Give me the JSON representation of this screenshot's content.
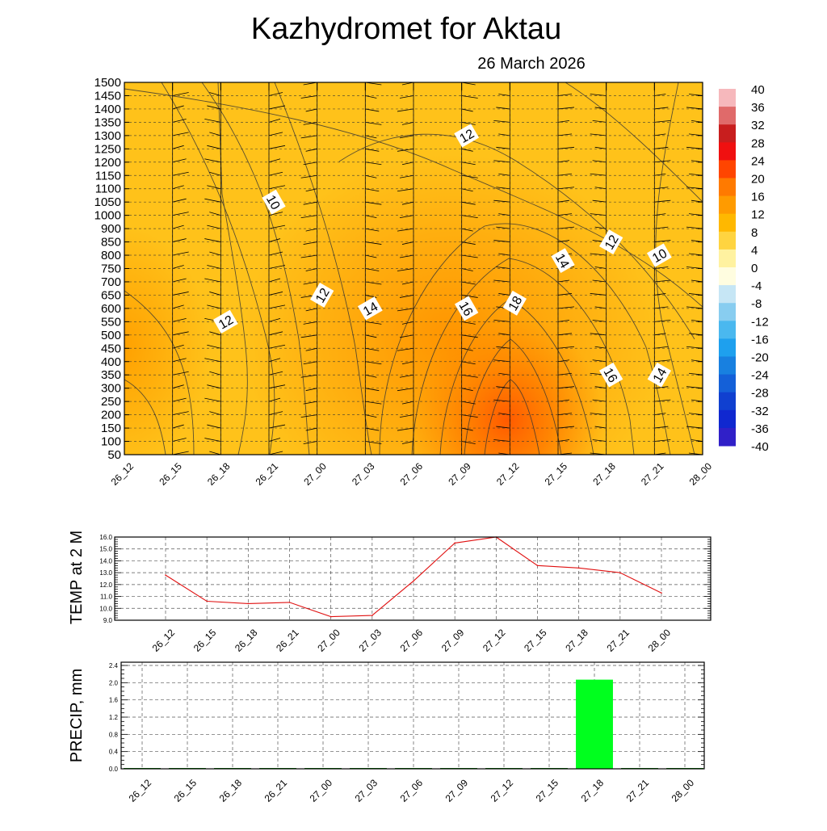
{
  "title": "Kazhydromet  for Aktau",
  "subtitle": "26 March 2026",
  "time_labels": [
    "26_12",
    "26_15",
    "26_18",
    "26_21",
    "27_00",
    "27_03",
    "27_06",
    "27_09",
    "27_12",
    "27_15",
    "27_18",
    "27_21",
    "28_00"
  ],
  "chart_data": [
    {
      "type": "heatmap",
      "description_source": "time-height cross-section (filled temperature, contours, wind barbs)",
      "x": [
        "26_12",
        "26_15",
        "26_18",
        "26_21",
        "27_00",
        "27_03",
        "27_06",
        "27_09",
        "27_12",
        "27_15",
        "27_18",
        "27_21",
        "28_00"
      ],
      "y_levels": [
        1500,
        1450,
        1400,
        1350,
        1300,
        1250,
        1200,
        1150,
        1100,
        1050,
        1000,
        900,
        850,
        800,
        750,
        700,
        650,
        600,
        550,
        500,
        450,
        400,
        350,
        300,
        250,
        200,
        150,
        100,
        50
      ],
      "colorbar": {
        "labels": [
          "40",
          "36",
          "32",
          "28",
          "24",
          "20",
          "16",
          "12",
          "8",
          "4",
          "0",
          "-4",
          "-8",
          "-12",
          "-16",
          "-20",
          "-24",
          "-28",
          "-32",
          "-36",
          "-40"
        ],
        "colors": [
          "#f6b8bc",
          "#e06a6a",
          "#c81e1e",
          "#f01010",
          "#ff4500",
          "#ff7a00",
          "#ff9b00",
          "#ffb800",
          "#ffd440",
          "#fff2a0",
          "#fffde0",
          "#c6e6f5",
          "#88cdf0",
          "#4ab8ef",
          "#1ea0ee",
          "#1880e0",
          "#1460d8",
          "#1040d0",
          "#1028d0",
          "#3020c8",
          "#8040d0"
        ]
      },
      "contour_labels": [
        {
          "text": "12",
          "time": "27_09",
          "level": 1300
        },
        {
          "text": "10",
          "time": "26_21",
          "level": 1050
        },
        {
          "text": "12",
          "time": "27_18",
          "level": 850
        },
        {
          "text": "10",
          "time": "27_21",
          "level": 800
        },
        {
          "text": "14",
          "time": "27_15",
          "level": 780
        },
        {
          "text": "12",
          "time": "27_00",
          "level": 650
        },
        {
          "text": "14",
          "time": "27_03",
          "level": 600
        },
        {
          "text": "16",
          "time": "27_09",
          "level": 600
        },
        {
          "text": "18",
          "time": "27_12",
          "level": 620
        },
        {
          "text": "12",
          "time": "26_18",
          "level": 550
        },
        {
          "text": "16",
          "time": "27_18",
          "level": 350
        },
        {
          "text": "14",
          "time": "27_21",
          "level": 350
        }
      ],
      "xlabel": "",
      "ylabel": ""
    },
    {
      "type": "line",
      "ylabel": "TEMP at 2 M",
      "x": [
        "26_12",
        "26_15",
        "26_18",
        "26_21",
        "27_00",
        "27_03",
        "27_06",
        "27_09",
        "27_12",
        "27_15",
        "27_18",
        "27_21",
        "28_00"
      ],
      "values": [
        12.8,
        10.6,
        10.4,
        10.5,
        9.3,
        9.4,
        12.3,
        15.5,
        16.0,
        13.6,
        13.4,
        13.0,
        11.3
      ],
      "y_ticks": [
        "9.0",
        "10.0",
        "11.0",
        "12.0",
        "13.0",
        "14.0",
        "15.0",
        "16.0"
      ],
      "ylim": [
        9.0,
        16.0
      ],
      "line_color": "#e01010"
    },
    {
      "type": "bar",
      "ylabel": "PRECIP, mm",
      "x": [
        "26_12",
        "26_15",
        "26_18",
        "26_21",
        "27_00",
        "27_03",
        "27_06",
        "27_09",
        "27_12",
        "27_15",
        "27_18",
        "27_21",
        "28_00"
      ],
      "values": [
        0,
        0,
        0,
        0,
        0,
        0,
        0,
        0,
        0,
        0,
        2.07,
        0,
        0
      ],
      "y_ticks": [
        "0.0",
        "0.4",
        "0.8",
        "1.2",
        "1.6",
        "2.0",
        "2.4"
      ],
      "ylim": [
        0,
        2.4
      ],
      "bar_color": "#00ff1e"
    }
  ]
}
